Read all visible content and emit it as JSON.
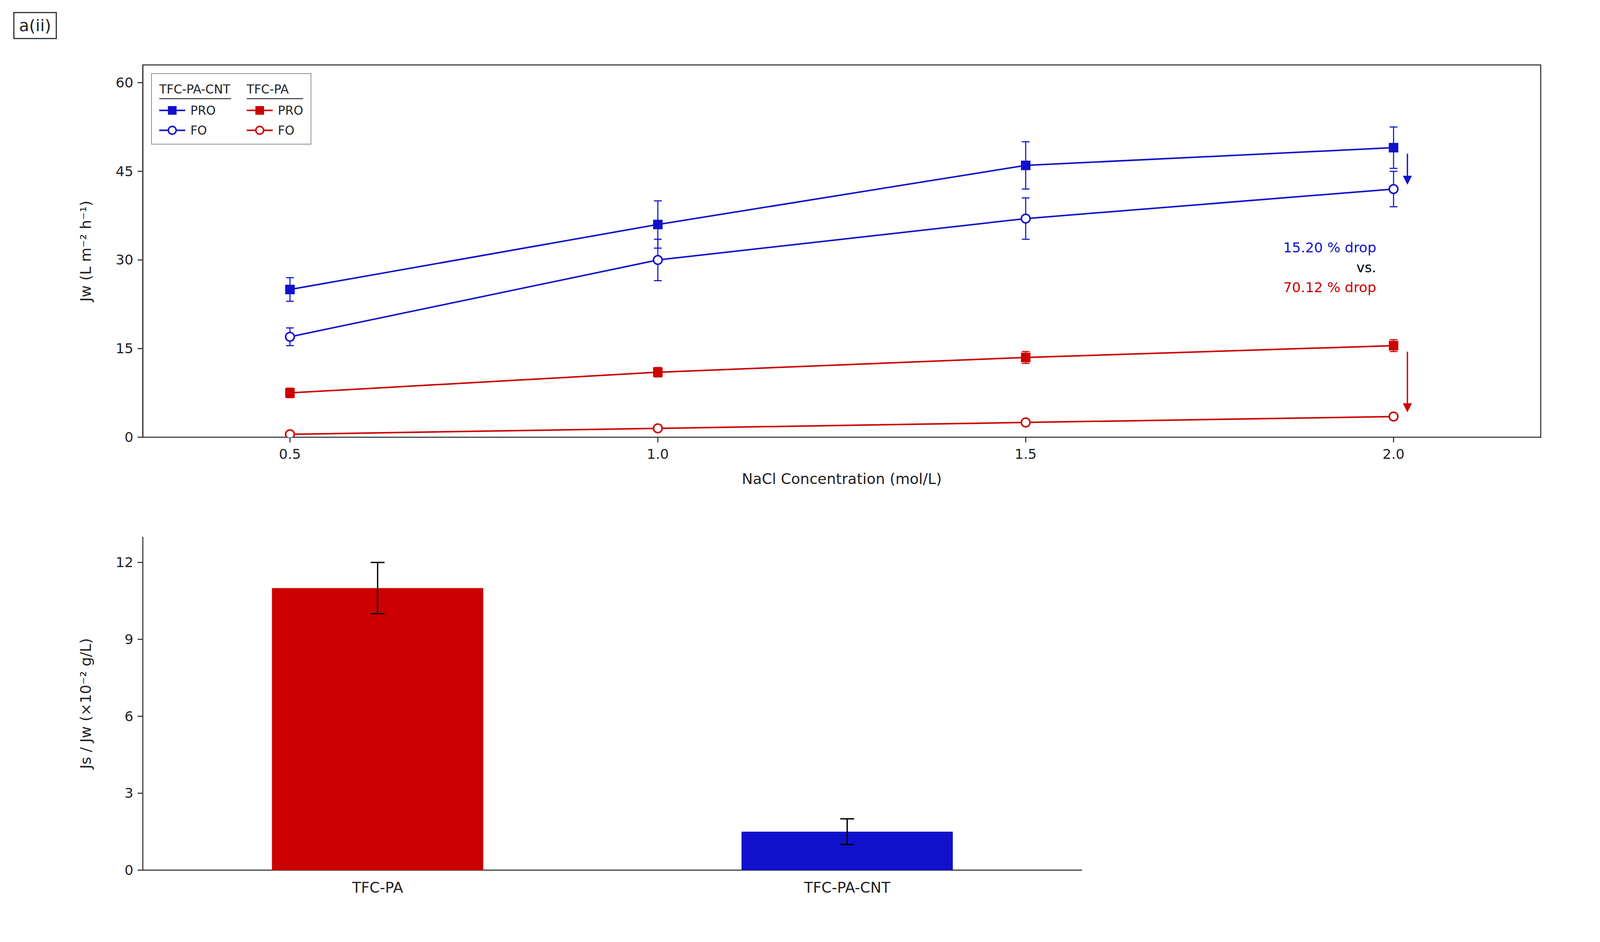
{
  "chart_data": [
    {
      "type": "line",
      "panel_label": "a(ii)",
      "x_label": "NaCl Concentration (mol/L)",
      "y_label": "Jw (L m⁻² h⁻¹)",
      "x": [
        0.5,
        1.0,
        1.5,
        2.0
      ],
      "xlim": [
        0.3,
        2.2
      ],
      "xticks": [
        0.5,
        {
          "value": 1.0,
          "label": "1.0"
        },
        1.5,
        {
          "value": 2.0,
          "label": "2.0"
        }
      ],
      "ylim": [
        0,
        63
      ],
      "yticks": [
        0,
        15,
        30,
        45,
        60
      ],
      "grid": false,
      "legend": "upper-left",
      "series": [
        {
          "name": "PRO",
          "group": "TFC-PA-CNT",
          "color": "#1111CC",
          "marker": "square",
          "values": [
            25.0,
            36.0,
            46.0,
            49.0
          ],
          "errors": [
            2.0,
            4.0,
            4.0,
            3.5
          ]
        },
        {
          "name": "FO",
          "group": "TFC-PA-CNT",
          "color": "#1111CC",
          "marker": "open-circle",
          "values": [
            17.0,
            30.0,
            37.0,
            42.0
          ],
          "errors": [
            1.5,
            3.5,
            3.5,
            3.0
          ]
        },
        {
          "name": "PRO",
          "group": "TFC-PA",
          "color": "#CC0000",
          "marker": "square",
          "values": [
            7.5,
            11.0,
            13.5,
            15.5
          ],
          "errors": [
            0.8,
            0.8,
            1.0,
            1.0
          ]
        },
        {
          "name": "FO",
          "group": "TFC-PA",
          "color": "#CC0000",
          "marker": "open-circle",
          "values": [
            0.5,
            1.5,
            2.5,
            3.5
          ],
          "errors": [
            0.3,
            0.3,
            0.5,
            0.5
          ]
        }
      ],
      "annotations": [
        {
          "text": "15.20 % drop",
          "color": "#1111CC"
        },
        {
          "text": "vs.",
          "color": "#000000"
        },
        {
          "text": "70.12 % drop",
          "color": "#CC0000"
        }
      ]
    },
    {
      "type": "bar",
      "y_label": "Js / Jw (×10⁻² g/L)",
      "categories": [
        "TFC-PA",
        "TFC-PA-CNT"
      ],
      "values": [
        11.0,
        1.5
      ],
      "errors": [
        1.0,
        0.5
      ],
      "colors": [
        "#CC0000",
        "#1111CC"
      ],
      "ylim": [
        0,
        13
      ],
      "yticks": [
        0,
        3,
        6,
        9,
        12
      ],
      "grid": false
    }
  ]
}
